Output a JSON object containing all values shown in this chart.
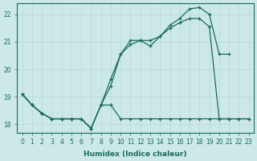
{
  "xlabel": "Humidex (Indice chaleur)",
  "ylabel": "",
  "background_color": "#cce8e8",
  "line_color": "#1a6b5a",
  "grid_color": "#b8d8d8",
  "ylim": [
    17.7,
    22.4
  ],
  "xlim": [
    -0.5,
    23.5
  ],
  "yticks": [
    18,
    19,
    20,
    21,
    22
  ],
  "xticks": [
    0,
    1,
    2,
    3,
    4,
    5,
    6,
    7,
    8,
    9,
    10,
    11,
    12,
    13,
    14,
    15,
    16,
    17,
    18,
    19,
    20,
    21,
    22,
    23
  ],
  "series": [
    {
      "x": [
        0,
        1,
        2,
        3,
        4,
        5,
        6,
        7,
        8,
        9,
        10,
        11,
        12,
        13,
        14,
        15,
        16,
        17,
        18,
        19,
        20,
        21
      ],
      "y": [
        19.1,
        18.7,
        18.4,
        18.2,
        18.2,
        18.2,
        18.2,
        17.85,
        18.7,
        19.65,
        20.55,
        21.05,
        21.05,
        21.05,
        21.2,
        21.6,
        21.85,
        22.2,
        22.25,
        22.0,
        20.55,
        20.55
      ]
    },
    {
      "x": [
        0,
        1,
        2,
        3,
        4,
        5,
        6,
        7,
        8,
        9,
        10,
        11,
        12,
        13,
        14,
        15,
        16,
        17,
        18,
        19,
        20,
        21,
        22,
        23
      ],
      "y": [
        19.1,
        18.7,
        18.4,
        18.2,
        18.2,
        18.2,
        18.2,
        17.85,
        18.7,
        19.4,
        20.55,
        20.9,
        21.05,
        20.85,
        21.2,
        21.5,
        21.7,
        21.85,
        21.85,
        21.55,
        18.2,
        18.2,
        18.2,
        18.2
      ]
    },
    {
      "x": [
        0,
        1,
        2,
        3,
        4,
        5,
        6,
        7,
        8,
        9,
        10,
        11,
        12,
        13,
        14,
        15,
        16,
        17,
        18,
        19,
        20,
        21,
        22,
        23
      ],
      "y": [
        19.1,
        18.7,
        18.4,
        18.2,
        18.2,
        18.2,
        18.2,
        17.85,
        18.7,
        18.7,
        18.2,
        18.2,
        18.2,
        18.2,
        18.2,
        18.2,
        18.2,
        18.2,
        18.2,
        18.2,
        18.2,
        18.2,
        18.2,
        18.2
      ]
    }
  ]
}
